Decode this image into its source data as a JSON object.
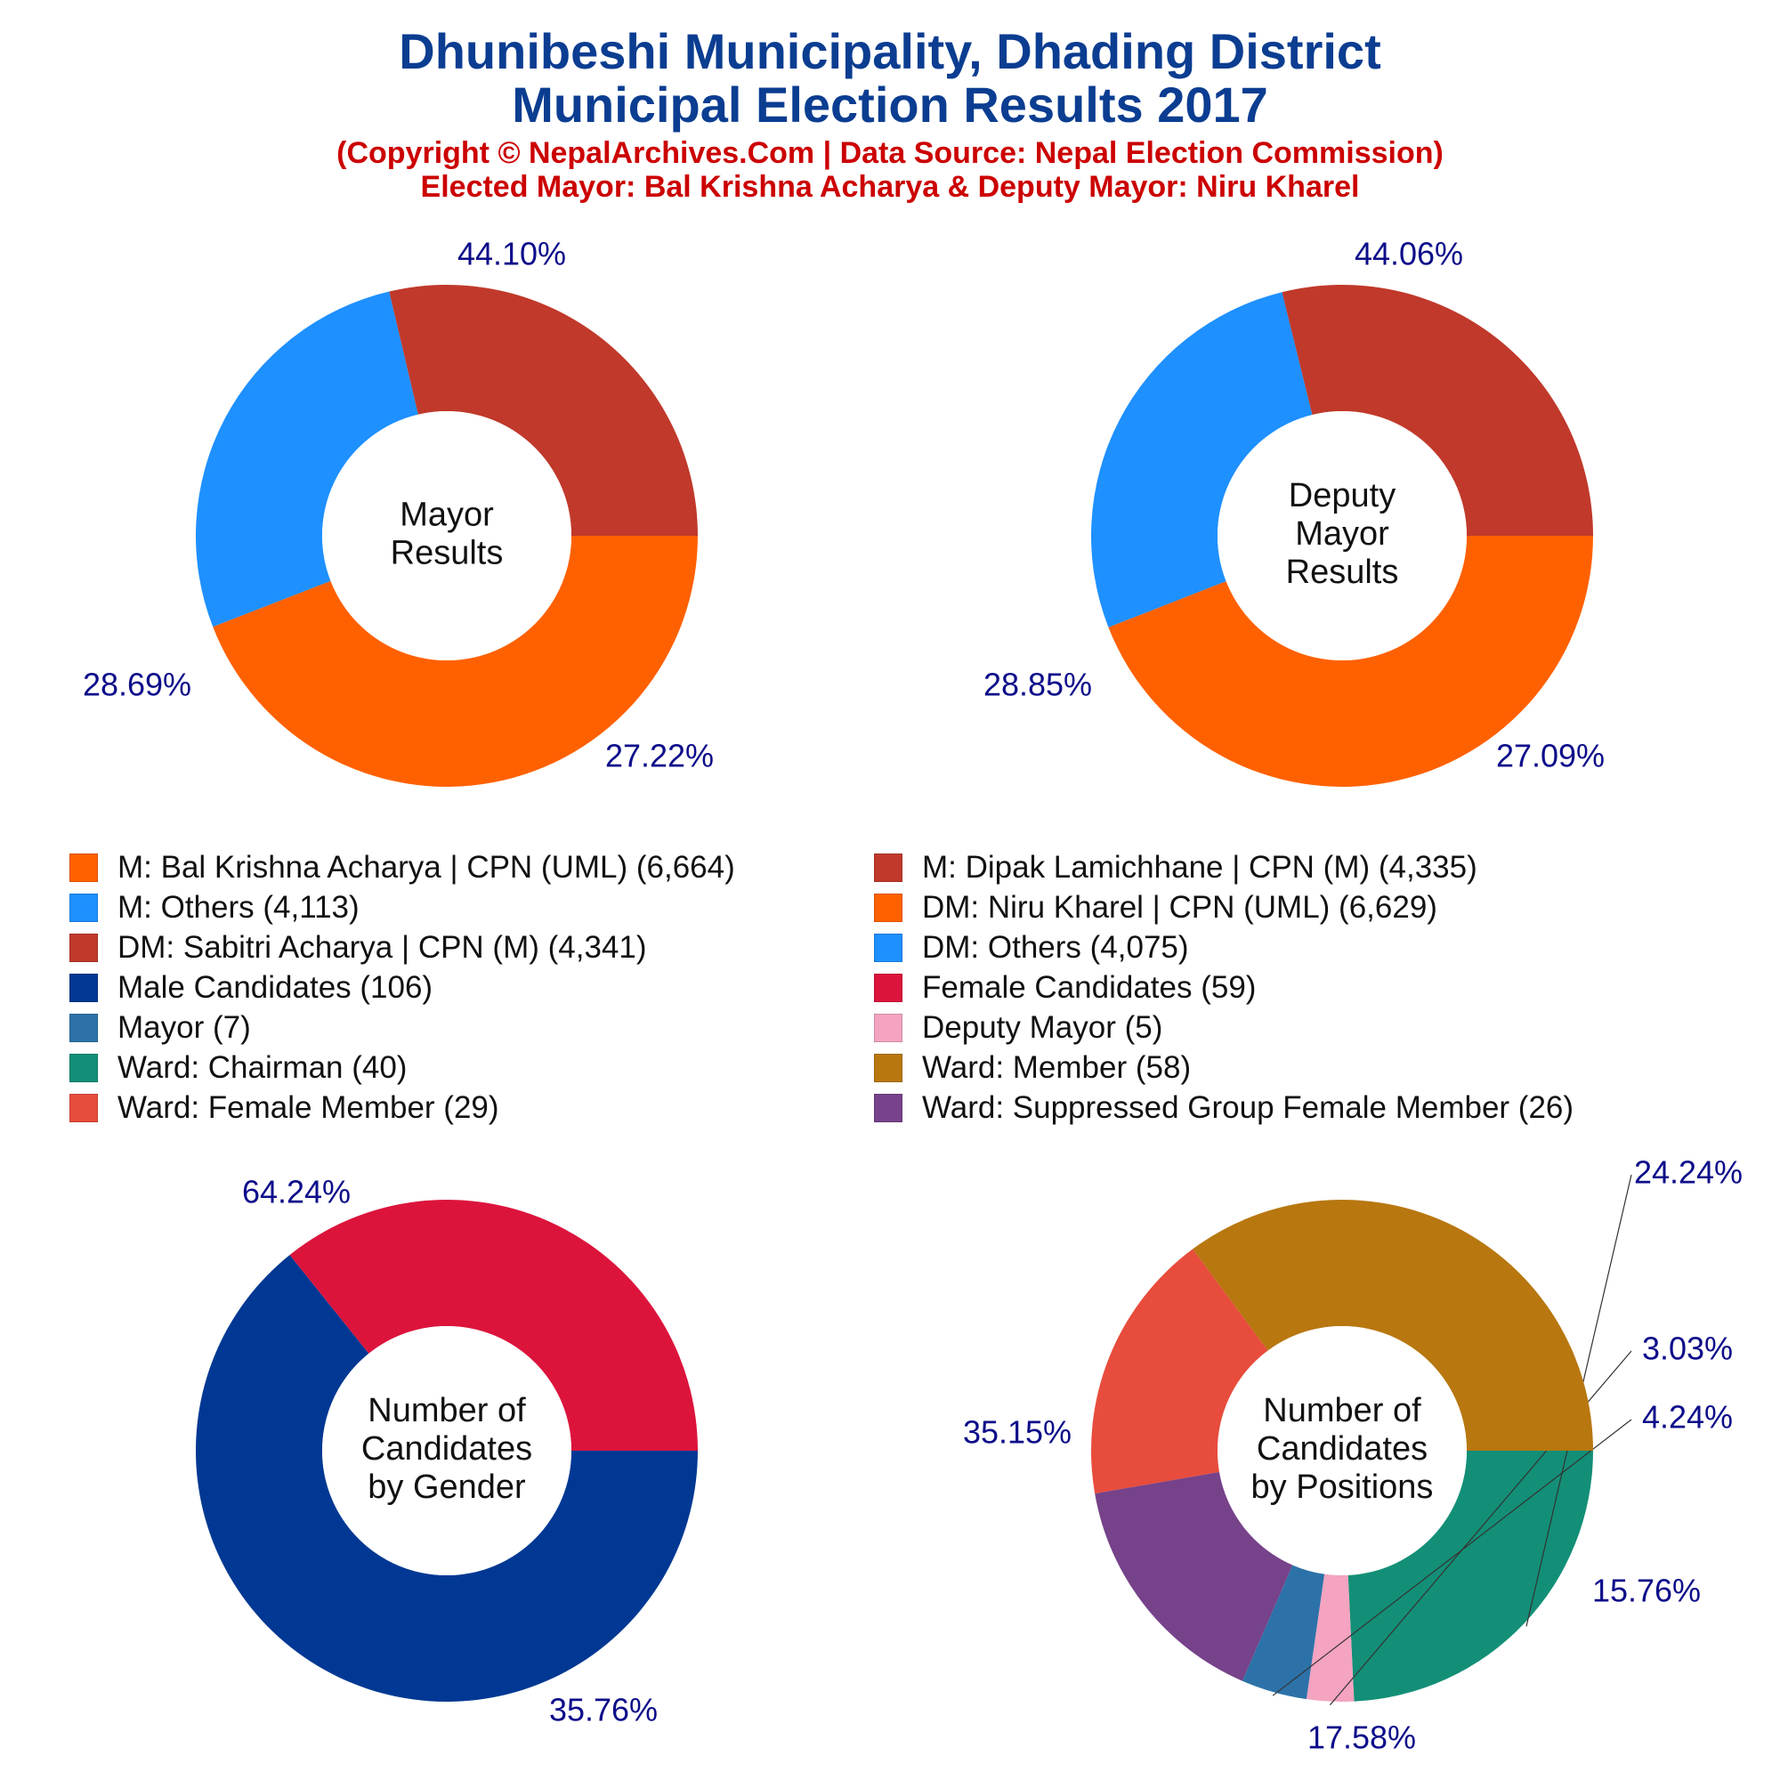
{
  "header": {
    "title_line1": "Dhunibeshi Municipality, Dhading District",
    "title_line2": "Municipal Election Results 2017",
    "subtitle_line1": "(Copyright © NepalArchives.Com | Data Source: Nepal Election Commission)",
    "subtitle_line2": "Elected Mayor: Bal Krishna Acharya & Deputy Mayor: Niru Kharel"
  },
  "legend": {
    "left": [
      {
        "label": "M: Bal Krishna Acharya | CPN (UML) (6,664)",
        "color": "#ff6100"
      },
      {
        "label": "M: Others (4,113)",
        "color": "#1e90ff"
      },
      {
        "label": "DM: Sabitri Acharya | CPN (M) (4,341)",
        "color": "#c0392b"
      },
      {
        "label": "Male Candidates (106)",
        "color": "#003893"
      },
      {
        "label": "Mayor (7)",
        "color": "#2c72a8"
      },
      {
        "label": "Ward: Chairman (40)",
        "color": "#138f77"
      },
      {
        "label": "Ward: Female Member (29)",
        "color": "#e74c3c"
      }
    ],
    "right": [
      {
        "label": "M: Dipak Lamichhane | CPN (M) (4,335)",
        "color": "#c0392b"
      },
      {
        "label": "DM: Niru Kharel | CPN (UML) (6,629)",
        "color": "#ff6100"
      },
      {
        "label": "DM: Others (4,075)",
        "color": "#1e90ff"
      },
      {
        "label": "Female Candidates (59)",
        "color": "#dc143c"
      },
      {
        "label": "Deputy Mayor (5)",
        "color": "#f4a3c0"
      },
      {
        "label": "Ward: Member (58)",
        "color": "#b8770f"
      },
      {
        "label": "Ward: Suppressed Group Female Member (26)",
        "color": "#76428a"
      }
    ]
  },
  "chart_data": [
    {
      "type": "pie",
      "donut": true,
      "center_label": [
        "Mayor",
        "Results"
      ],
      "slices": [
        {
          "label": "44.10%",
          "value": 44.1,
          "color": "#ff6100"
        },
        {
          "label": "27.22%",
          "value": 27.22,
          "color": "#1e90ff"
        },
        {
          "label": "28.69%",
          "value": 28.69,
          "color": "#c0392b"
        }
      ]
    },
    {
      "type": "pie",
      "donut": true,
      "center_label": [
        "Deputy",
        "Mayor",
        "Results"
      ],
      "slices": [
        {
          "label": "44.06%",
          "value": 44.06,
          "color": "#ff6100"
        },
        {
          "label": "27.09%",
          "value": 27.09,
          "color": "#1e90ff"
        },
        {
          "label": "28.85%",
          "value": 28.85,
          "color": "#c0392b"
        }
      ]
    },
    {
      "type": "pie",
      "donut": true,
      "center_label": [
        "Number of",
        "Candidates",
        "by Gender"
      ],
      "slices": [
        {
          "label": "64.24%",
          "value": 64.24,
          "color": "#003893"
        },
        {
          "label": "35.76%",
          "value": 35.76,
          "color": "#dc143c"
        }
      ]
    },
    {
      "type": "pie",
      "donut": true,
      "center_label": [
        "Number of",
        "Candidates",
        "by Positions"
      ],
      "slices": [
        {
          "label": "24.24%",
          "value": 24.24,
          "color": "#138f77"
        },
        {
          "label": "3.03%",
          "value": 3.03,
          "color": "#f4a3c0"
        },
        {
          "label": "4.24%",
          "value": 4.24,
          "color": "#2c72a8"
        },
        {
          "label": "15.76%",
          "value": 15.76,
          "color": "#76428a"
        },
        {
          "label": "17.58%",
          "value": 17.58,
          "color": "#e74c3c"
        },
        {
          "label": "35.15%",
          "value": 35.15,
          "color": "#b8770f"
        }
      ]
    }
  ]
}
